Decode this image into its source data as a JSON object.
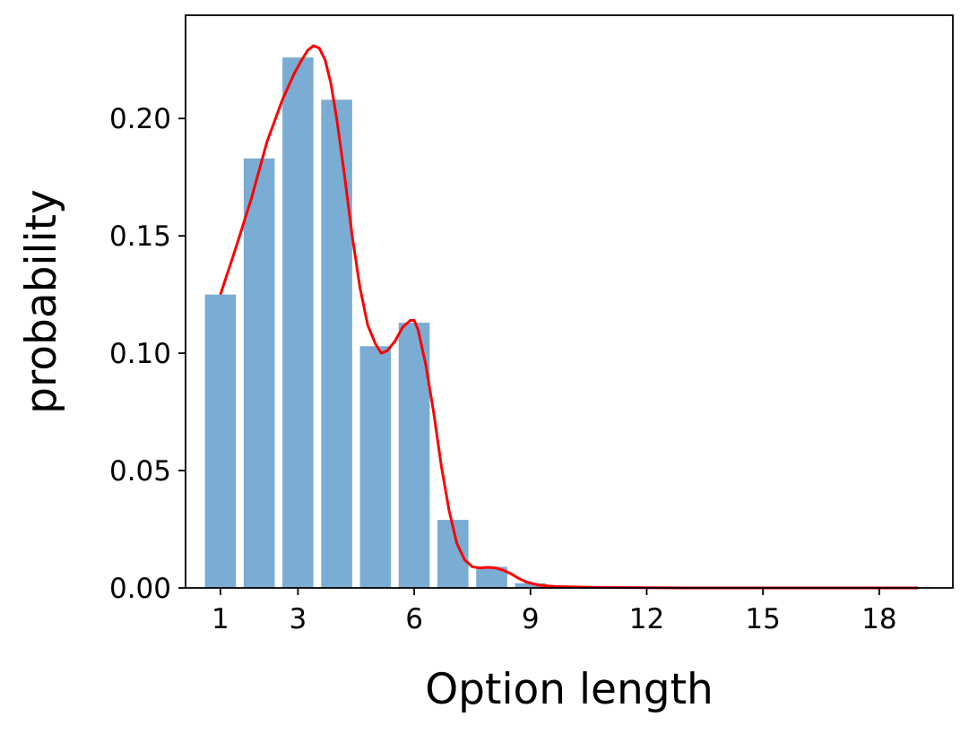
{
  "chart_data": {
    "type": "bar",
    "title": "",
    "xlabel": "Option length",
    "ylabel": "probability",
    "xlim": [
      0.1,
      19.9
    ],
    "ylim": [
      0,
      0.244
    ],
    "xticks": [
      1,
      3,
      6,
      9,
      12,
      15,
      18
    ],
    "xtick_labels": [
      "1",
      "3",
      "6",
      "9",
      "12",
      "15",
      "18"
    ],
    "yticks": [
      0.0,
      0.05,
      0.1,
      0.15,
      0.2
    ],
    "ytick_labels": [
      "0.00",
      "0.05",
      "0.10",
      "0.15",
      "0.20"
    ],
    "grid": false,
    "bar_color": "#7bacd3",
    "line_color": "#ff0000",
    "bars": {
      "x": [
        1,
        2,
        3,
        4,
        5,
        6,
        7,
        8,
        9,
        10,
        11,
        12,
        13,
        14,
        15,
        16,
        17,
        18
      ],
      "values": [
        0.125,
        0.183,
        0.226,
        0.208,
        0.103,
        0.113,
        0.029,
        0.009,
        0.002,
        0.0003,
        0.0001,
        0.0,
        0.0,
        0.0,
        0.0,
        0.0,
        0.0,
        0.0
      ]
    },
    "curve": {
      "x": [
        1.0,
        1.4,
        1.8,
        2.2,
        2.6,
        2.9,
        3.1,
        3.25,
        3.4,
        3.55,
        3.7,
        3.85,
        4.0,
        4.2,
        4.4,
        4.6,
        4.8,
        5.0,
        5.15,
        5.3,
        5.5,
        5.7,
        5.9,
        6.0,
        6.1,
        6.3,
        6.5,
        6.7,
        6.9,
        7.1,
        7.3,
        7.5,
        7.7,
        7.9,
        8.1,
        8.3,
        8.5,
        8.7,
        8.9,
        9.2,
        9.6,
        10.0,
        10.5,
        11.0,
        12.0,
        13.0,
        14.0,
        15.0,
        16.0,
        17.0,
        18.0,
        19.0
      ],
      "y": [
        0.125,
        0.145,
        0.166,
        0.19,
        0.208,
        0.219,
        0.225,
        0.229,
        0.231,
        0.23,
        0.225,
        0.215,
        0.2,
        0.176,
        0.15,
        0.128,
        0.112,
        0.104,
        0.1,
        0.101,
        0.105,
        0.111,
        0.114,
        0.114,
        0.11,
        0.095,
        0.075,
        0.052,
        0.033,
        0.019,
        0.012,
        0.009,
        0.0085,
        0.0088,
        0.0085,
        0.0075,
        0.006,
        0.004,
        0.0025,
        0.0012,
        0.0006,
        0.0005,
        0.0003,
        0.0002,
        0.0001,
        0.0,
        0.0,
        0.0,
        0.0,
        0.0,
        0.0,
        0.0
      ]
    }
  }
}
